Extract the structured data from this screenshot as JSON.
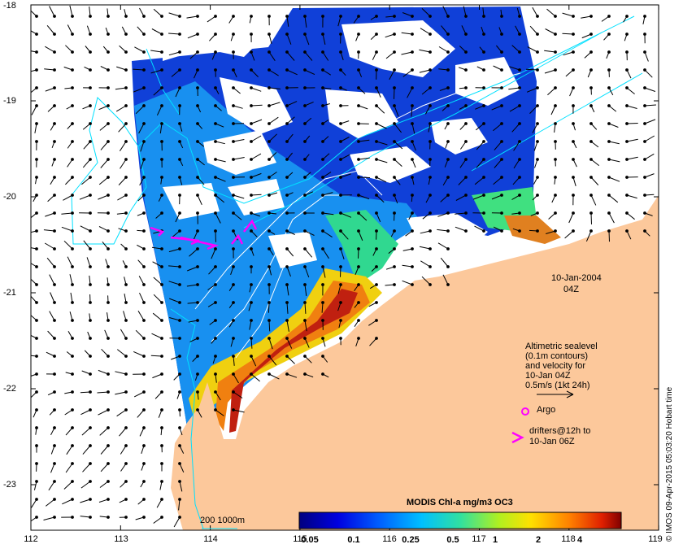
{
  "map": {
    "date": "10-Jan-2004",
    "time": "04Z",
    "credit": "© IMOS 09-Apr-2015 05:03:20 Hobart time",
    "lat_labels": [
      "-18",
      "-19",
      "-20",
      "-21",
      "-22",
      "-23"
    ],
    "lon_labels": [
      "112",
      "113",
      "114",
      "115",
      "116",
      "117",
      "118",
      "119"
    ],
    "bathymetry_label": "200  1000m",
    "legend": {
      "altimetry_lines": [
        "Altimetric sealevel",
        "(0.1m contours)",
        "and velocity for",
        "10-Jan 04Z",
        "0.5m/s (1kt 24h)"
      ],
      "argo_label": "Argo",
      "drifters_lines": [
        "drifters@12h to",
        "10-Jan 06Z"
      ]
    },
    "colorbar": {
      "title": "MODIS Chl-a mg/m3 OC3",
      "ticks": [
        "0.05",
        "0.1",
        "0.25",
        "0.5",
        "1",
        "2",
        "4"
      ]
    },
    "colors": {
      "land": "#fcc89b",
      "cloud": "#ffffff",
      "contour": "#00e0ff",
      "drifter": "#ff00ff",
      "argo": "#ff00ff"
    }
  }
}
